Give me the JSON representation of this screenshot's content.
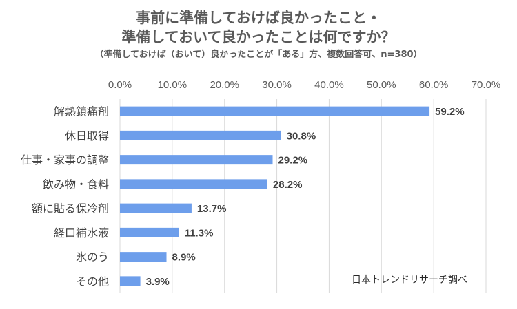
{
  "chart_data": {
    "type": "bar",
    "orientation": "horizontal",
    "title_line1": "事前に準備しておけば良かったこと・",
    "title_line2": "準備しておいて良かったことは何ですか？",
    "subtitle": "（準備しておけば（おいて）良かったことが「ある」方、複数回答可、n=380）",
    "categories": [
      "解熱鎮痛剤",
      "休日取得",
      "仕事・家事の調整",
      "飲み物・食料",
      "額に貼る保冷剤",
      "経口補水液",
      "氷のう",
      "その他"
    ],
    "values": [
      59.2,
      30.8,
      29.2,
      28.2,
      13.7,
      11.3,
      8.9,
      3.9
    ],
    "value_labels": [
      "59.2%",
      "30.8%",
      "29.2%",
      "28.2%",
      "13.7%",
      "11.3%",
      "8.9%",
      "3.9%"
    ],
    "xticks": [
      "0.0%",
      "10.0%",
      "20.0%",
      "30.0%",
      "40.0%",
      "50.0%",
      "60.0%",
      "70.0%"
    ],
    "xlim": [
      0,
      70
    ],
    "axis_position": "top",
    "grid": true,
    "bar_color": "#6d9eeb",
    "source_note": "日本トレンドリサーチ調べ"
  }
}
